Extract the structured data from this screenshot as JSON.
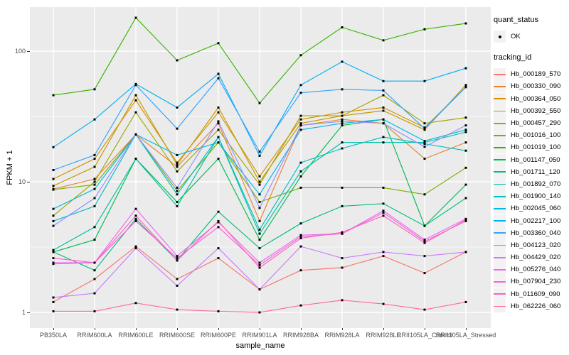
{
  "figure": {
    "background": "#FFFFFF",
    "panel_background": "#EBEBEB",
    "grid_color": "#FFFFFF",
    "point_color": "#000000",
    "tick_color": "#333333",
    "tick_label_color": "#4D4D4D"
  },
  "chart_data": {
    "type": "line",
    "title": "",
    "xlabel": "sample_name",
    "ylabel": "FPKM + 1",
    "y_scale": "log10",
    "y_ticks": [
      1,
      10,
      100
    ],
    "y_tick_labels": [
      "1",
      "10",
      "100"
    ],
    "y_minor_breaks": [
      3.1623,
      31.623
    ],
    "ylim": [
      1,
      230
    ],
    "grid": true,
    "legend_position": "right",
    "point_marker": "solid-dot",
    "categories": [
      "PB350LA",
      "RRIM600LA",
      "RRIM600LE",
      "RRIM600SE",
      "RRIM600PE",
      "RRIM901LA",
      "RRIM928BA",
      "RRIM928LA",
      "RRIM928LE",
      "RRII105LA_Control",
      "RRII105LA_Stressed"
    ],
    "legend": {
      "quant_status_title": "quant_status",
      "quant_status_items": [
        "OK"
      ],
      "tracking_title": "tracking_id"
    },
    "series": [
      {
        "name": "Hb_000189_570",
        "color": "#F8766D",
        "values": [
          1.2,
          1.8,
          3.2,
          1.8,
          2.6,
          1.5,
          2.1,
          2.2,
          2.7,
          2.0,
          2.9
        ]
      },
      {
        "name": "Hb_000330_090",
        "color": "#EA8331",
        "values": [
          8.8,
          10.5,
          23,
          13,
          28,
          5.0,
          27,
          30,
          28,
          15,
          20
        ]
      },
      {
        "name": "Hb_000364_050",
        "color": "#D89000",
        "values": [
          10.5,
          15,
          42,
          14,
          34,
          11,
          30,
          34,
          37,
          26,
          53
        ]
      },
      {
        "name": "Hb_000392_550",
        "color": "#C09B00",
        "values": [
          9.3,
          13,
          46,
          13.5,
          37,
          10,
          28,
          32,
          35,
          25,
          55
        ]
      },
      {
        "name": "Hb_000457_290",
        "color": "#A3A500",
        "values": [
          5.5,
          10,
          34,
          12,
          25,
          9.5,
          32,
          32,
          46,
          28,
          31
        ]
      },
      {
        "name": "Hb_001016_100",
        "color": "#7CAE00",
        "values": [
          8.7,
          9.5,
          23,
          8.5,
          20,
          7.0,
          9.0,
          9.0,
          9.0,
          8.0,
          12.8
        ]
      },
      {
        "name": "Hb_001019_100",
        "color": "#39B600",
        "values": [
          46,
          51,
          180,
          85,
          115,
          40,
          93,
          152,
          121,
          147,
          163
        ]
      },
      {
        "name": "Hb_001147_050",
        "color": "#00BB4E",
        "values": [
          2.9,
          3.6,
          15,
          7.0,
          15,
          3.6,
          11,
          27,
          30,
          4.6,
          9.5
        ]
      },
      {
        "name": "Hb_001711_120",
        "color": "#00BF7D",
        "values": [
          2.9,
          2.1,
          5.2,
          2.5,
          5.9,
          3.1,
          4.8,
          6.5,
          6.8,
          4.6,
          7.5
        ]
      },
      {
        "name": "Hb_001892_070",
        "color": "#00C1A3",
        "values": [
          3.0,
          4.5,
          15,
          6.5,
          22,
          4.0,
          12,
          20,
          20,
          20,
          24
        ]
      },
      {
        "name": "Hb_001900_140",
        "color": "#00BFC4",
        "values": [
          5.0,
          6.5,
          23,
          8.0,
          22,
          4.3,
          14,
          18,
          22,
          19.5,
          17.3
        ]
      },
      {
        "name": "Hb_002045_060",
        "color": "#00BAE0",
        "values": [
          6.2,
          8.8,
          23,
          16,
          20,
          8.0,
          25,
          28,
          30,
          20.5,
          25
        ]
      },
      {
        "name": "Hb_002217_100",
        "color": "#00B0F6",
        "values": [
          18.4,
          30,
          56,
          37,
          67,
          15.8,
          55,
          83,
          59,
          59,
          74
        ]
      },
      {
        "name": "Hb_003360_040",
        "color": "#35A2FF",
        "values": [
          12.3,
          16,
          55,
          25.5,
          62,
          17,
          48,
          51,
          50,
          25.5,
          53
        ]
      },
      {
        "name": "Hb_004123_020",
        "color": "#9590FF",
        "values": [
          4.6,
          7.5,
          23,
          9.0,
          29,
          6.3,
          27,
          29,
          28,
          18.5,
          27
        ]
      },
      {
        "name": "Hb_004429_020",
        "color": "#C77CFF",
        "values": [
          1.3,
          1.4,
          3.1,
          1.6,
          3.1,
          1.5,
          3.2,
          2.6,
          2.9,
          2.7,
          2.9
        ]
      },
      {
        "name": "Hb_005276_040",
        "color": "#E76BF3",
        "values": [
          2.4,
          2.4,
          6.2,
          2.7,
          4.9,
          2.4,
          3.9,
          4.0,
          6.0,
          3.6,
          5.2
        ]
      },
      {
        "name": "Hb_007904_230",
        "color": "#FA62DB",
        "values": [
          2.35,
          2.4,
          5.0,
          2.6,
          4.5,
          2.3,
          3.8,
          4.0,
          5.8,
          3.5,
          5.0
        ]
      },
      {
        "name": "Hb_011609_090",
        "color": "#FF62BC",
        "values": [
          2.6,
          2.4,
          5.5,
          2.5,
          5.0,
          2.2,
          3.7,
          4.1,
          5.5,
          3.4,
          5.1
        ]
      },
      {
        "name": "Hb_062226_060",
        "color": "#FF6A98",
        "values": [
          1.02,
          1.02,
          1.18,
          1.05,
          1.02,
          1.0,
          1.13,
          1.24,
          1.16,
          1.05,
          1.2
        ]
      }
    ]
  }
}
